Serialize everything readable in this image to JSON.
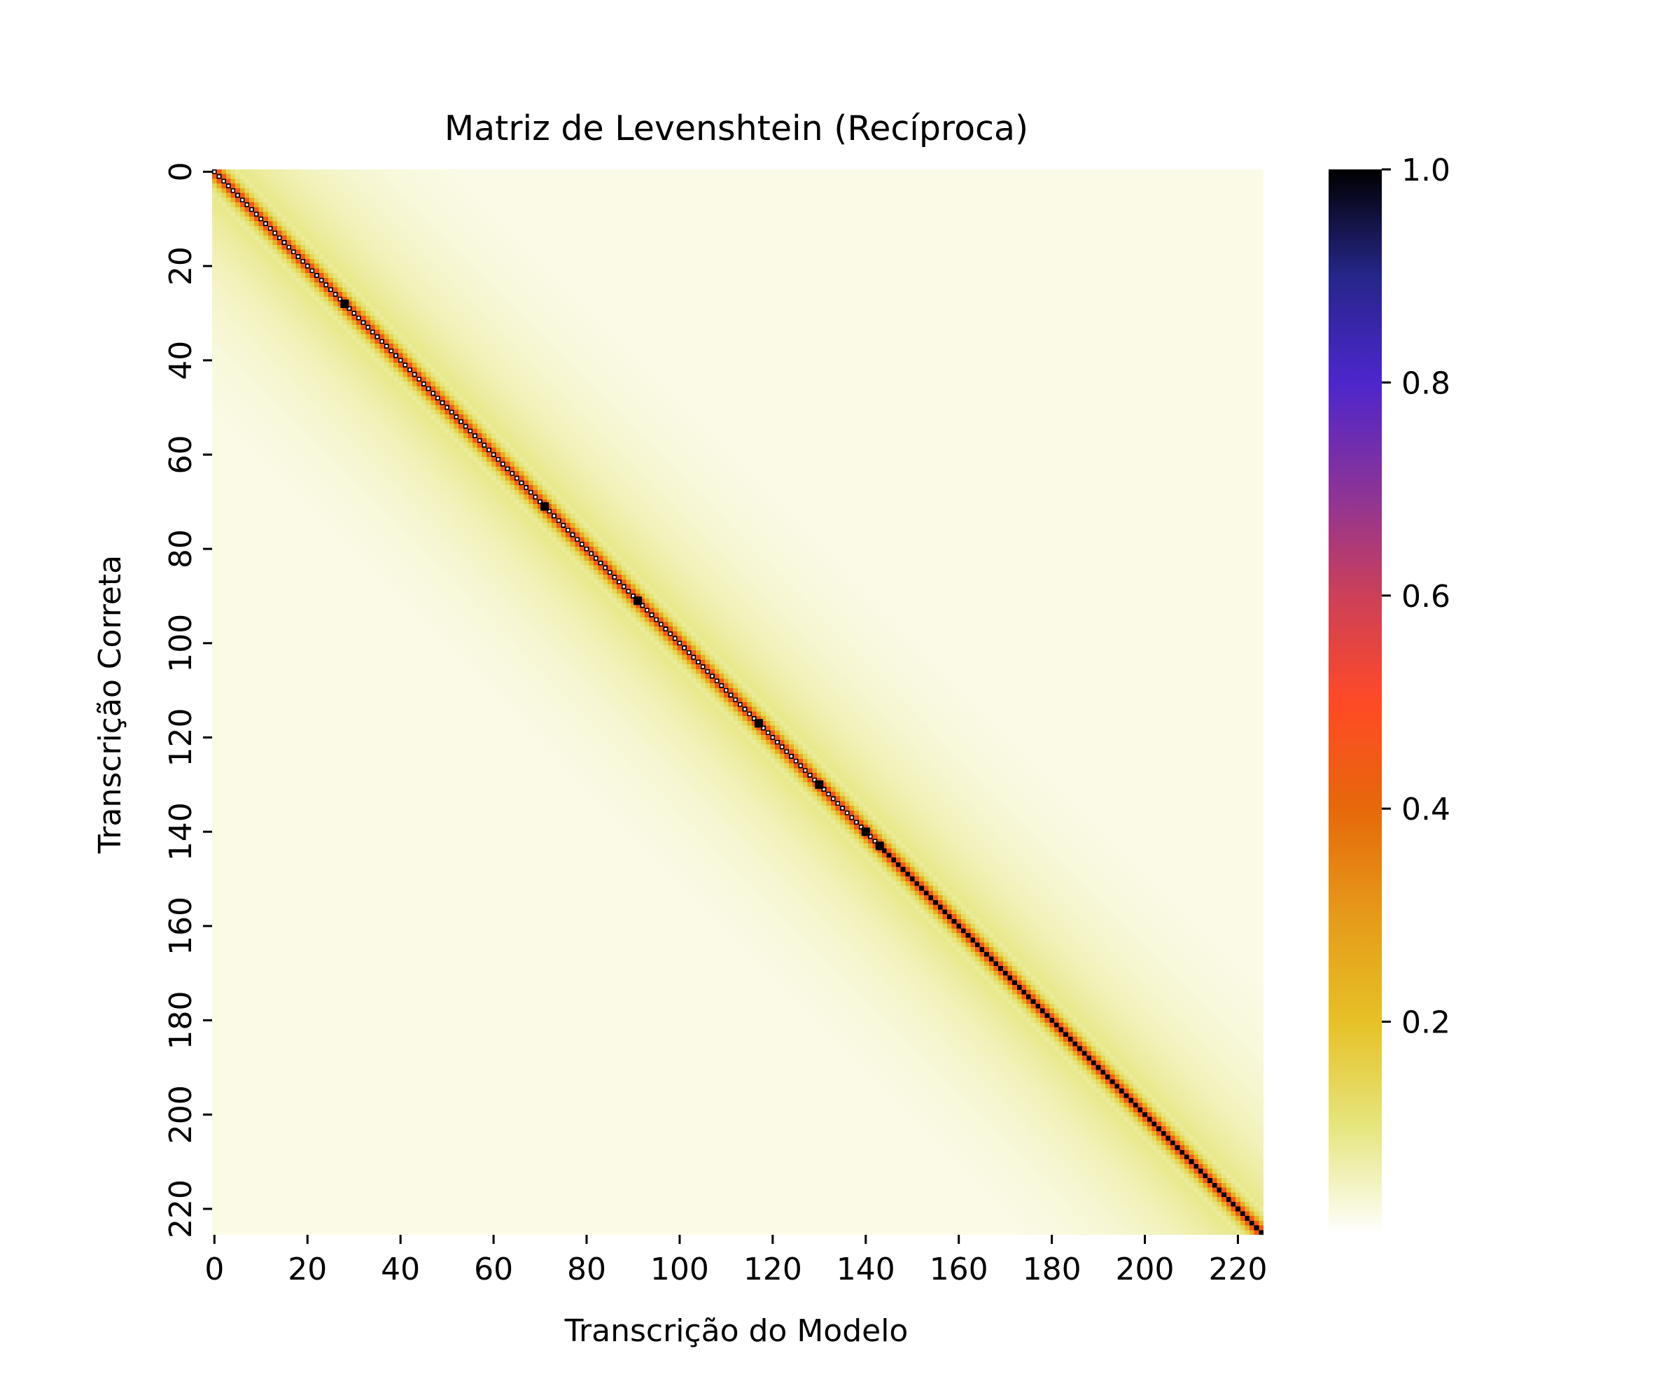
{
  "chart_data": {
    "type": "heatmap",
    "title": "Matriz de Levenshtein (Recíproca)",
    "xlabel": "Transcrição do Modelo",
    "ylabel": "Transcrição Correta",
    "n_rows": 226,
    "n_cols": 226,
    "x_ticks": [
      "0",
      "20",
      "40",
      "60",
      "80",
      "100",
      "120",
      "140",
      "160",
      "180",
      "200",
      "220"
    ],
    "y_ticks": [
      "0",
      "20",
      "40",
      "60",
      "80",
      "100",
      "120",
      "140",
      "160",
      "180",
      "200",
      "220"
    ],
    "x_tick_values": [
      0,
      20,
      40,
      60,
      80,
      100,
      120,
      140,
      160,
      180,
      200,
      220
    ],
    "y_tick_values": [
      0,
      20,
      40,
      60,
      80,
      100,
      120,
      140,
      160,
      180,
      200,
      220
    ],
    "colorbar": {
      "colormap": "CMRmap_r",
      "min": 0.0,
      "max": 1.0,
      "ticks": [
        "0.2",
        "0.4",
        "0.6",
        "0.8",
        "1.0"
      ],
      "tick_values": [
        0.2,
        0.4,
        0.6,
        0.8,
        1.0
      ]
    },
    "pattern": {
      "diagonal_value": 1.0,
      "diagonal_band_values": [
        0.45,
        0.25,
        0.14,
        0.1,
        0.08
      ],
      "background_value": 0.02,
      "diagonal_white_segments": [
        [
          0,
          143
        ]
      ],
      "diagonal_dark_marks": [
        28,
        71,
        91,
        117,
        130,
        140,
        143
      ]
    },
    "grid": false
  }
}
